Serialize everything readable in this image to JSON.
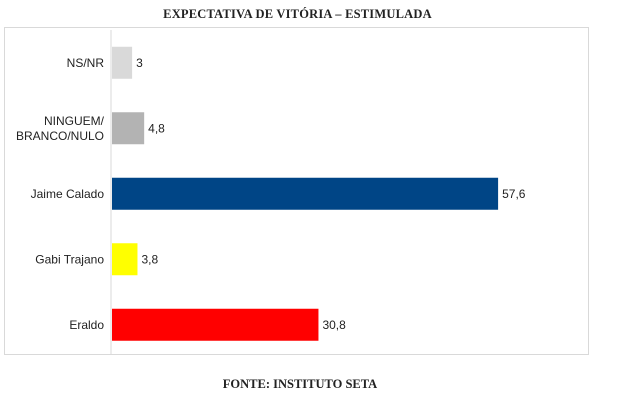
{
  "title": "EXPECTATIVA DE VITÓRIA – ESTIMULADA",
  "source": "FONTE: INSTITUTO SETA",
  "chart_data": {
    "type": "bar",
    "orientation": "horizontal",
    "title": "EXPECTATIVA DE VITÓRIA – ESTIMULADA",
    "categories": [
      "NS/NR",
      "NINGUEM/\nBRANCO/NULO",
      "Jaime Calado",
      "Gabi Trajano",
      "Eraldo"
    ],
    "values": [
      3,
      4.8,
      57.6,
      3.8,
      30.8
    ],
    "value_labels": [
      "3",
      "4,8",
      "57,6",
      "3,8",
      "30,8"
    ],
    "colors": [
      "#d9d9d9",
      "#b3b3b3",
      "#004586",
      "#ffff00",
      "#ff0000"
    ],
    "xlim": [
      0,
      64
    ],
    "grid": false,
    "legend": "none"
  }
}
